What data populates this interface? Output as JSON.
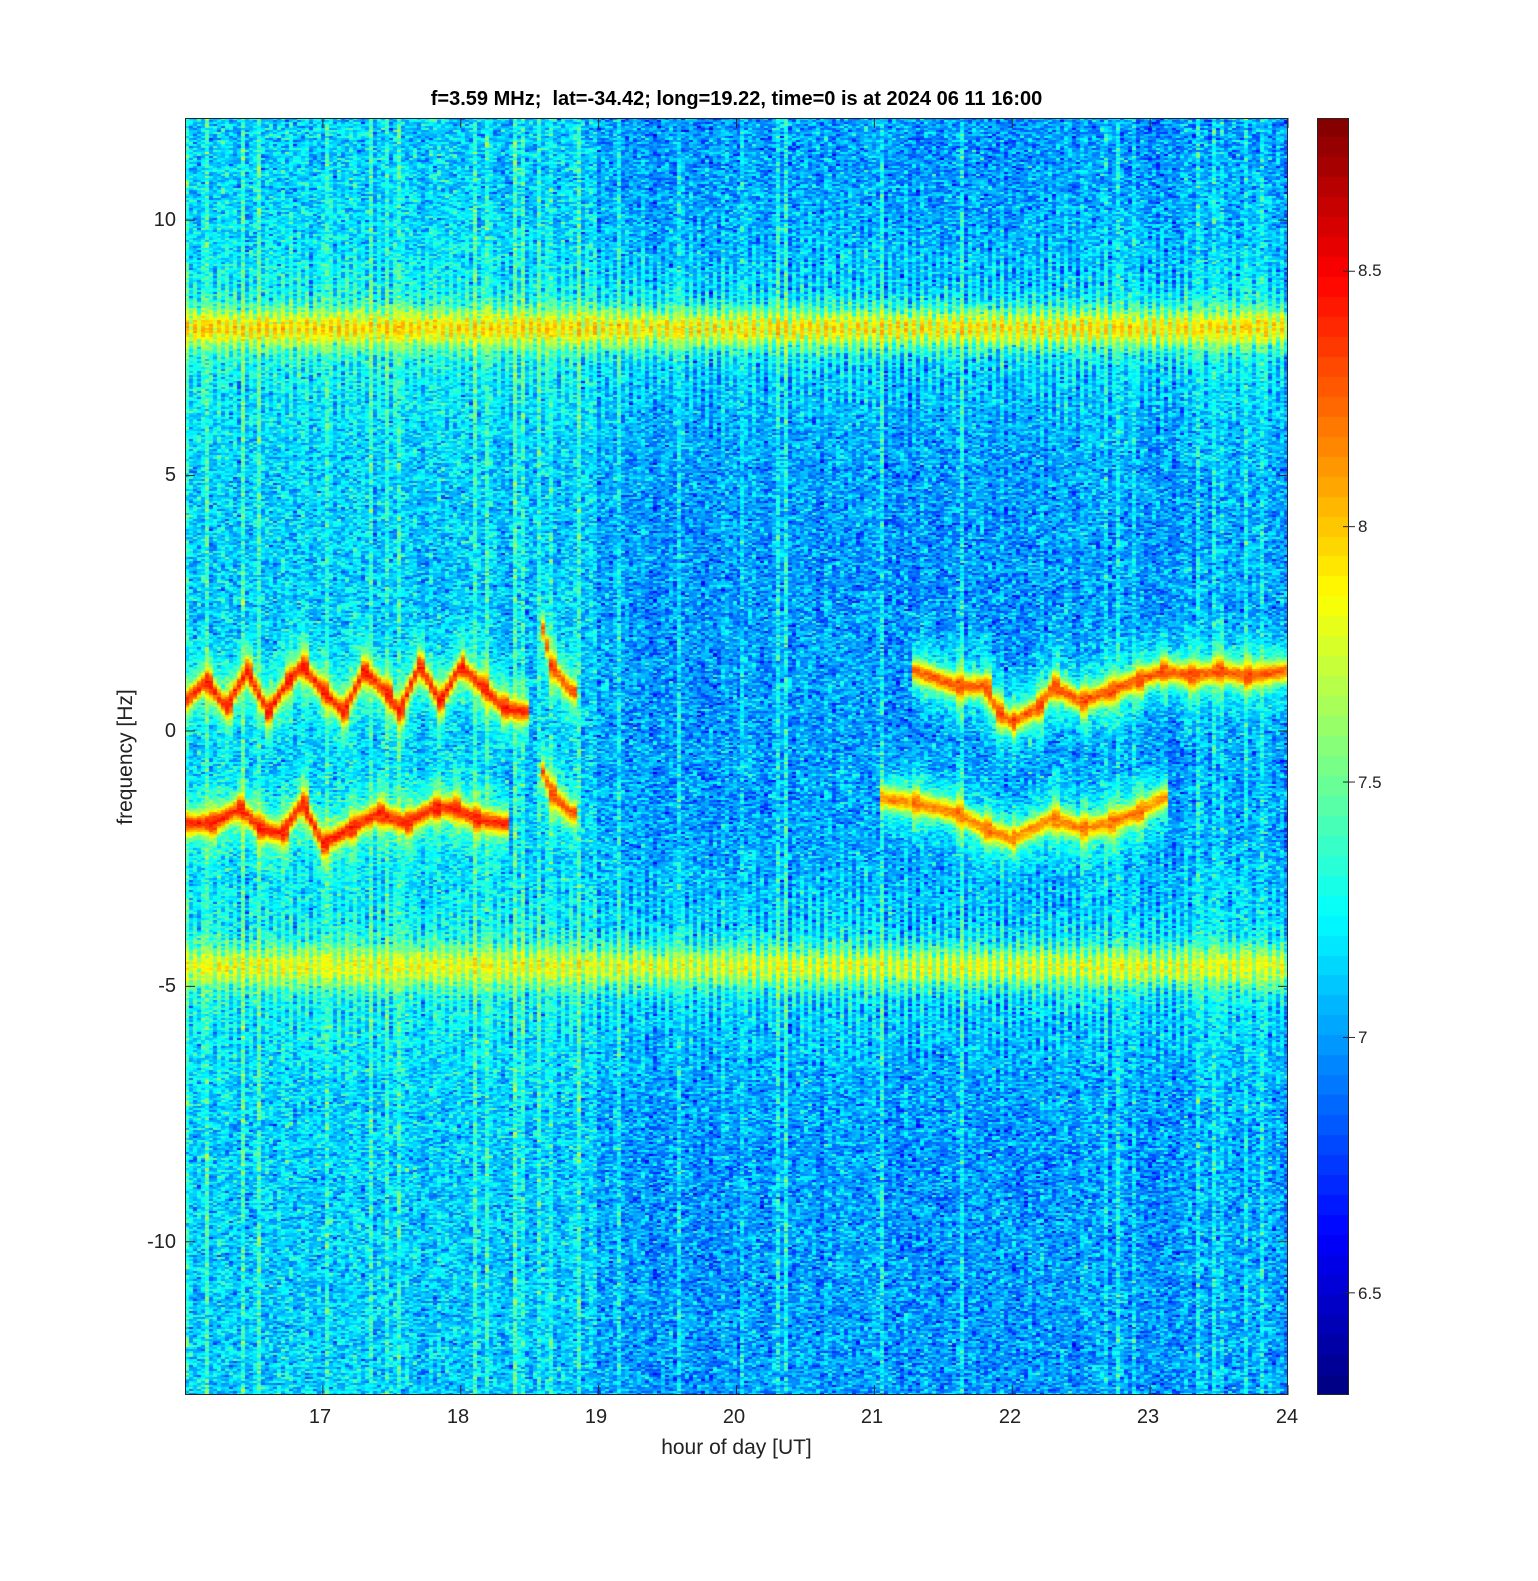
{
  "chart_data": {
    "type": "heatmap",
    "title": "f=3.59 MHz;  lat=-34.42; long=19.22, time=0 is at 2024 06 11 16:00",
    "xlabel": "hour of day [UT]",
    "ylabel": "frequency [Hz]",
    "xlim": [
      16,
      24
    ],
    "ylim": [
      -13,
      12
    ],
    "x_ticks": [
      17,
      18,
      19,
      20,
      21,
      22,
      23,
      24
    ],
    "x_tick_labels": [
      "17",
      "18",
      "19",
      "20",
      "21",
      "22",
      "23",
      "24"
    ],
    "y_ticks": [
      10,
      5,
      0,
      -5,
      -10
    ],
    "y_tick_labels": [
      "10",
      "5",
      "0",
      "-5",
      "-10"
    ],
    "colormap": "jet",
    "clim": [
      6.3,
      8.8
    ],
    "colorbar_ticks": [
      8.5,
      8,
      7.5,
      7,
      6.5
    ],
    "colorbar_tick_labels": [
      "8.5",
      "8",
      "7.5",
      "7",
      "6.5"
    ],
    "background_level": 7.0,
    "features": [
      {
        "name": "band",
        "center_hz": 7.9,
        "level": 8.7,
        "x_range": [
          16,
          24
        ]
      },
      {
        "name": "band",
        "center_hz": -4.6,
        "level": 8.4,
        "x_range": [
          16,
          24
        ]
      },
      {
        "name": "trace",
        "level": 8.8,
        "points": [
          [
            16.0,
            0.6
          ],
          [
            16.15,
            1.0
          ],
          [
            16.3,
            0.5
          ],
          [
            16.45,
            1.2
          ],
          [
            16.6,
            0.4
          ],
          [
            16.75,
            1.0
          ],
          [
            16.85,
            1.3
          ],
          [
            17.0,
            0.8
          ],
          [
            17.15,
            0.4
          ],
          [
            17.3,
            1.2
          ],
          [
            17.45,
            0.8
          ],
          [
            17.55,
            0.4
          ],
          [
            17.7,
            1.3
          ],
          [
            17.85,
            0.6
          ],
          [
            18.0,
            1.3
          ],
          [
            18.15,
            0.9
          ],
          [
            18.3,
            0.5
          ],
          [
            18.45,
            0.4
          ]
        ]
      },
      {
        "name": "trace",
        "level": 8.8,
        "points": [
          [
            16.0,
            -1.8
          ],
          [
            16.2,
            -1.8
          ],
          [
            16.4,
            -1.5
          ],
          [
            16.55,
            -1.9
          ],
          [
            16.7,
            -2.0
          ],
          [
            16.85,
            -1.4
          ],
          [
            17.0,
            -2.2
          ],
          [
            17.2,
            -1.9
          ],
          [
            17.4,
            -1.6
          ],
          [
            17.6,
            -1.8
          ],
          [
            17.8,
            -1.5
          ],
          [
            17.95,
            -1.5
          ],
          [
            18.1,
            -1.7
          ],
          [
            18.3,
            -1.8
          ]
        ]
      },
      {
        "name": "trace",
        "level": 8.6,
        "points": [
          [
            18.6,
            2.0
          ],
          [
            18.65,
            1.3
          ],
          [
            18.8,
            0.8
          ]
        ]
      },
      {
        "name": "trace",
        "level": 8.6,
        "points": [
          [
            18.6,
            -0.8
          ],
          [
            18.65,
            -1.2
          ],
          [
            18.8,
            -1.6
          ]
        ]
      },
      {
        "name": "trace",
        "level": 8.6,
        "points": [
          [
            21.3,
            1.2
          ],
          [
            21.6,
            0.9
          ],
          [
            21.8,
            0.9
          ],
          [
            21.9,
            0.4
          ],
          [
            22.0,
            0.2
          ],
          [
            22.2,
            0.5
          ],
          [
            22.3,
            0.9
          ],
          [
            22.5,
            0.6
          ],
          [
            22.7,
            0.8
          ],
          [
            22.9,
            1.0
          ],
          [
            23.1,
            1.2
          ],
          [
            23.3,
            1.1
          ],
          [
            23.5,
            1.2
          ],
          [
            23.7,
            1.1
          ],
          [
            24.0,
            1.2
          ]
        ]
      },
      {
        "name": "trace",
        "level": 8.4,
        "points": [
          [
            21.05,
            -1.3
          ],
          [
            21.3,
            -1.4
          ],
          [
            21.6,
            -1.6
          ],
          [
            21.8,
            -1.9
          ],
          [
            22.0,
            -2.1
          ],
          [
            22.3,
            -1.7
          ],
          [
            22.5,
            -1.9
          ],
          [
            22.7,
            -1.8
          ],
          [
            22.9,
            -1.6
          ],
          [
            23.1,
            -1.3
          ]
        ]
      }
    ]
  }
}
